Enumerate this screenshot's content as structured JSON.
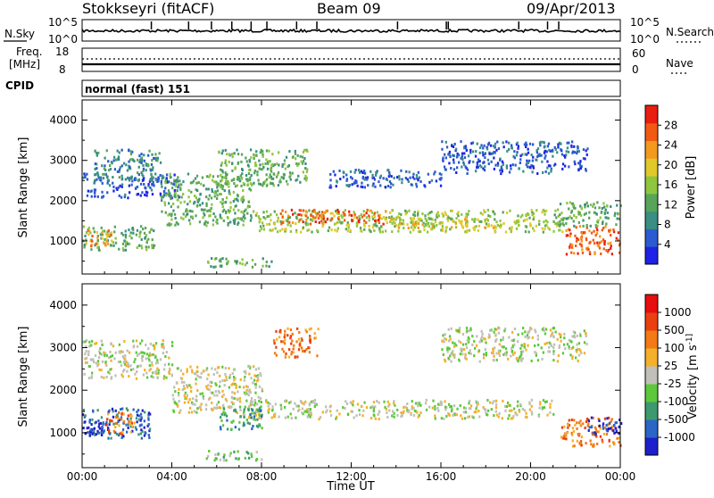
{
  "header": {
    "station": "Stokkseyri (fitACF)",
    "beam": "Beam 09",
    "date": "09/Apr/2013"
  },
  "noise_panel": {
    "left_label": "N.Sky",
    "left_ticks": [
      "10^5",
      "10^0"
    ],
    "right_ticks": [
      "10^5",
      "10^0"
    ],
    "right_label": "N.Search"
  },
  "freq_panel": {
    "left_label_line1": "Freq.",
    "left_label_line2": "[MHz]",
    "left_ticks": [
      "18",
      "8"
    ],
    "right_ticks": [
      "60",
      "0"
    ],
    "right_label": "Nave"
  },
  "cpid": {
    "label": "CPID",
    "value": "normal (fast) 151"
  },
  "chart_data": [
    {
      "type": "heatmap",
      "quantity": "power",
      "ylabel": "Slant Range [km]",
      "xlabel": "",
      "ylim": [
        180,
        4500
      ],
      "yticks": [
        "4000",
        "3000",
        "2000",
        "1000"
      ],
      "colorbar": {
        "label": "Power [dB]",
        "range": [
          0,
          32
        ],
        "ticks": [
          "28",
          "24",
          "20",
          "16",
          "12",
          "8",
          "4"
        ],
        "colors": [
          "#1e22e6",
          "#2b5bd0",
          "#3a8f82",
          "#58a55a",
          "#8ec63f",
          "#e0c92a",
          "#f39a1e",
          "#f25a14",
          "#e81e0e"
        ]
      },
      "bands": [
        {
          "t0": 0.0,
          "t1": 4.3,
          "r0": 2100,
          "r1": 2700,
          "v": 7
        },
        {
          "t0": 0.5,
          "t1": 3.5,
          "r0": 2500,
          "r1": 3300,
          "v": 9
        },
        {
          "t0": 0.0,
          "t1": 3.2,
          "r0": 800,
          "r1": 1400,
          "v": 14
        },
        {
          "t0": 0.0,
          "t1": 1.3,
          "r0": 900,
          "r1": 1300,
          "v": 22
        },
        {
          "t0": 3.5,
          "t1": 7.5,
          "r0": 1400,
          "r1": 2700,
          "v": 12
        },
        {
          "t0": 7.5,
          "t1": 21.5,
          "r0": 1250,
          "r1": 1800,
          "v": 15
        },
        {
          "t0": 8.8,
          "t1": 13.5,
          "r0": 1450,
          "r1": 1800,
          "v": 25
        },
        {
          "t0": 13.5,
          "t1": 18.5,
          "r0": 1350,
          "r1": 1600,
          "v": 20
        },
        {
          "t0": 6.0,
          "t1": 10.0,
          "r0": 2400,
          "r1": 3300,
          "v": 13
        },
        {
          "t0": 11.0,
          "t1": 16.0,
          "r0": 2350,
          "r1": 2800,
          "v": 6
        },
        {
          "t0": 16.0,
          "t1": 22.5,
          "r0": 2700,
          "r1": 3500,
          "v": 6
        },
        {
          "t0": 21.5,
          "t1": 24.0,
          "r0": 700,
          "r1": 1400,
          "v": 27
        },
        {
          "t0": 21.0,
          "t1": 24.0,
          "r0": 1400,
          "r1": 2000,
          "v": 14
        },
        {
          "t0": 5.5,
          "t1": 8.5,
          "r0": 380,
          "r1": 600,
          "v": 12
        }
      ]
    },
    {
      "type": "heatmap",
      "quantity": "velocity",
      "ylabel": "Slant Range [km]",
      "xlabel": "Time UT",
      "ylim": [
        180,
        4500
      ],
      "xlim": [
        0,
        24
      ],
      "yticks": [
        "4000",
        "3000",
        "2000",
        "1000"
      ],
      "xticks": [
        "00:00",
        "04:00",
        "08:00",
        "12:00",
        "16:00",
        "20:00",
        "00:00"
      ],
      "colorbar": {
        "label": "Velocity [m s^-1]",
        "ticks": [
          "1000",
          "500",
          "100",
          "25",
          "-25",
          "-100",
          "-500",
          "-1000"
        ],
        "colors": [
          "#1e1ecc",
          "#2a66c4",
          "#3c9a6e",
          "#5dc83a",
          "#c0c0b8",
          "#f5b02a",
          "#f37a14",
          "#ea4010",
          "#e60e0e"
        ]
      },
      "bands": [
        {
          "t0": 0.0,
          "t1": 4.0,
          "r0": 2300,
          "r1": 3200,
          "v": 4
        },
        {
          "t0": 0.0,
          "t1": 3.0,
          "r0": 900,
          "r1": 1600,
          "v": 1
        },
        {
          "t0": 0.0,
          "t1": 1.2,
          "r0": 950,
          "r1": 1300,
          "v": 0
        },
        {
          "t0": 1.0,
          "t1": 2.3,
          "r0": 1000,
          "r1": 1500,
          "v": 6
        },
        {
          "t0": 7.0,
          "t1": 21.0,
          "r0": 1350,
          "r1": 1800,
          "v": 4
        },
        {
          "t0": 4.0,
          "t1": 8.0,
          "r0": 1500,
          "r1": 2600,
          "v": 4
        },
        {
          "t0": 6.0,
          "t1": 8.0,
          "r0": 1100,
          "r1": 1600,
          "v": 2
        },
        {
          "t0": 8.5,
          "t1": 10.5,
          "r0": 2800,
          "r1": 3500,
          "v": 6
        },
        {
          "t0": 21.3,
          "t1": 24.0,
          "r0": 700,
          "r1": 1400,
          "v": 6
        },
        {
          "t0": 22.5,
          "t1": 24.0,
          "r0": 1000,
          "r1": 1400,
          "v": 0
        },
        {
          "t0": 16.0,
          "t1": 22.5,
          "r0": 2700,
          "r1": 3500,
          "v": 4
        },
        {
          "t0": 5.5,
          "t1": 8.0,
          "r0": 380,
          "r1": 600,
          "v": 3
        }
      ]
    }
  ]
}
